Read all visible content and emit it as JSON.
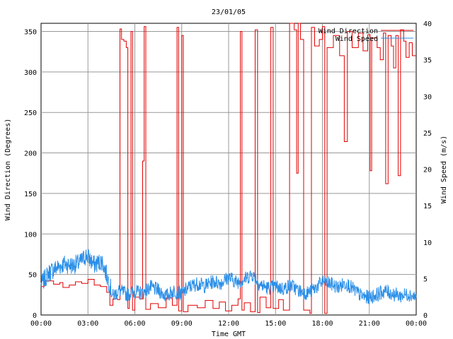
{
  "chart_data": {
    "type": "line",
    "title": "23/01/05",
    "xlabel": "Time GMT",
    "ylabel_left": "Wind Direction (Degrees)",
    "ylabel_right": "Wind Speed (m/s)",
    "x_ticks": [
      "00:00",
      "03:00",
      "06:00",
      "09:00",
      "12:00",
      "15:00",
      "18:00",
      "21:00",
      "00:00"
    ],
    "x_range_hours": [
      0,
      24
    ],
    "y_left_ticks": [
      "0",
      "50",
      "100",
      "150",
      "200",
      "250",
      "300",
      "350"
    ],
    "y_left_range": [
      0,
      360
    ],
    "y_right_ticks": [
      "0",
      "5",
      "10",
      "15",
      "20",
      "25",
      "30",
      "35",
      "40"
    ],
    "y_right_range": [
      0,
      40
    ],
    "grid": true,
    "legend_position": "top-right",
    "series": [
      {
        "name": "Wind Direction",
        "axis": "left",
        "color": "#e00000",
        "step": true,
        "points": [
          [
            0,
            35
          ],
          [
            0.2,
            42
          ],
          [
            0.8,
            38
          ],
          [
            1.2,
            40
          ],
          [
            1.4,
            34
          ],
          [
            1.8,
            37
          ],
          [
            2.2,
            41
          ],
          [
            2.6,
            39
          ],
          [
            3.0,
            44
          ],
          [
            3.4,
            37
          ],
          [
            3.8,
            35
          ],
          [
            4.2,
            28
          ],
          [
            4.4,
            12
          ],
          [
            4.6,
            20
          ],
          [
            4.9,
            19
          ],
          [
            5.05,
            353
          ],
          [
            5.15,
            340
          ],
          [
            5.3,
            338
          ],
          [
            5.45,
            330
          ],
          [
            5.55,
            8
          ],
          [
            5.65,
            25
          ],
          [
            5.75,
            350
          ],
          [
            5.85,
            6
          ],
          [
            6.0,
            22
          ],
          [
            6.3,
            20
          ],
          [
            6.5,
            190
          ],
          [
            6.6,
            356
          ],
          [
            6.7,
            7
          ],
          [
            7.0,
            14
          ],
          [
            7.5,
            9
          ],
          [
            8.0,
            21
          ],
          [
            8.4,
            12
          ],
          [
            8.7,
            355
          ],
          [
            8.8,
            5
          ],
          [
            9.0,
            345
          ],
          [
            9.1,
            4
          ],
          [
            9.4,
            12
          ],
          [
            10.0,
            9
          ],
          [
            10.5,
            18
          ],
          [
            11.0,
            8
          ],
          [
            11.4,
            16
          ],
          [
            11.8,
            5
          ],
          [
            12.2,
            12
          ],
          [
            12.6,
            20
          ],
          [
            12.75,
            350
          ],
          [
            12.85,
            6
          ],
          [
            13.0,
            15
          ],
          [
            13.4,
            4
          ],
          [
            13.7,
            352
          ],
          [
            13.85,
            3
          ],
          [
            14.0,
            22
          ],
          [
            14.4,
            9
          ],
          [
            14.7,
            355
          ],
          [
            14.85,
            8
          ],
          [
            15.2,
            19
          ],
          [
            15.5,
            6
          ],
          [
            15.9,
            360
          ],
          [
            16.2,
            352
          ],
          [
            16.35,
            175
          ],
          [
            16.45,
            360
          ],
          [
            16.6,
            340
          ],
          [
            16.8,
            6
          ],
          [
            17.2,
            2
          ],
          [
            17.3,
            355
          ],
          [
            17.5,
            332
          ],
          [
            17.8,
            340
          ],
          [
            18.0,
            356
          ],
          [
            18.15,
            2
          ],
          [
            18.3,
            330
          ],
          [
            18.7,
            345
          ],
          [
            19.1,
            320
          ],
          [
            19.4,
            214
          ],
          [
            19.6,
            350
          ],
          [
            19.9,
            330
          ],
          [
            20.3,
            348
          ],
          [
            20.6,
            326
          ],
          [
            20.9,
            346
          ],
          [
            21.05,
            178
          ],
          [
            21.15,
            342
          ],
          [
            21.5,
            330
          ],
          [
            21.7,
            315
          ],
          [
            21.9,
            348
          ],
          [
            22.05,
            162
          ],
          [
            22.2,
            345
          ],
          [
            22.4,
            332
          ],
          [
            22.55,
            305
          ],
          [
            22.7,
            345
          ],
          [
            22.85,
            172
          ],
          [
            23.0,
            352
          ],
          [
            23.2,
            338
          ],
          [
            23.35,
            318
          ],
          [
            23.55,
            336
          ],
          [
            23.75,
            320
          ],
          [
            24.0,
            320
          ]
        ]
      },
      {
        "name": "Wind Speed",
        "axis": "right",
        "color": "#2b8fe8",
        "step": false,
        "points": [
          [
            0,
            4.2
          ],
          [
            0.5,
            5.8
          ],
          [
            1.0,
            6.5
          ],
          [
            1.5,
            7.0
          ],
          [
            2.0,
            6.8
          ],
          [
            2.5,
            7.2
          ],
          [
            2.9,
            8.2
          ],
          [
            3.4,
            6.9
          ],
          [
            3.9,
            7.4
          ],
          [
            4.3,
            4.8
          ],
          [
            4.6,
            2.6
          ],
          [
            5.0,
            3.4
          ],
          [
            5.5,
            2.8
          ],
          [
            6.0,
            3.2
          ],
          [
            6.5,
            3.0
          ],
          [
            7.0,
            3.8
          ],
          [
            7.5,
            3.4
          ],
          [
            8.0,
            2.6
          ],
          [
            8.5,
            3.3
          ],
          [
            9.0,
            2.9
          ],
          [
            9.5,
            3.9
          ],
          [
            10.0,
            4.3
          ],
          [
            10.5,
            4.0
          ],
          [
            11.0,
            4.6
          ],
          [
            11.5,
            4.4
          ],
          [
            12.0,
            5.2
          ],
          [
            12.5,
            4.5
          ],
          [
            13.0,
            4.9
          ],
          [
            13.5,
            5.6
          ],
          [
            14.0,
            4.2
          ],
          [
            14.5,
            3.7
          ],
          [
            15.0,
            3.9
          ],
          [
            15.5,
            3.6
          ],
          [
            16.0,
            4.1
          ],
          [
            16.5,
            3.3
          ],
          [
            17.0,
            3.0
          ],
          [
            17.5,
            3.6
          ],
          [
            18.0,
            4.6
          ],
          [
            18.5,
            4.3
          ],
          [
            19.0,
            3.8
          ],
          [
            19.5,
            4.4
          ],
          [
            20.0,
            3.5
          ],
          [
            20.5,
            2.6
          ],
          [
            21.0,
            2.4
          ],
          [
            21.5,
            2.8
          ],
          [
            22.0,
            3.3
          ],
          [
            22.5,
            2.9
          ],
          [
            23.0,
            2.6
          ],
          [
            23.5,
            2.9
          ],
          [
            24.0,
            2.4
          ]
        ]
      }
    ]
  }
}
